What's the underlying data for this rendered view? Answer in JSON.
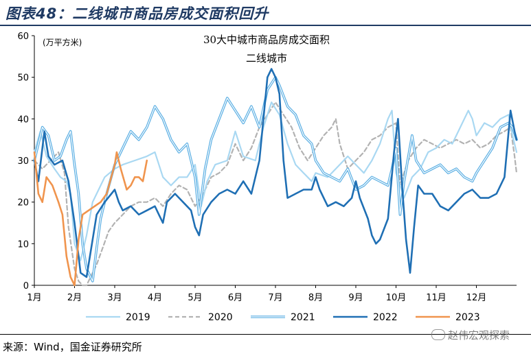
{
  "figure_title": "图表48：二线城市商品房成交面积回升",
  "source_note": "来源：Wind，国金证券研究所",
  "watermark": "赵伟宏观探索",
  "chart_data": {
    "type": "line",
    "title": "30大中城市商品房成交面积",
    "subtitle": "二线城市",
    "unit_label": "(万平方米)",
    "ylim": [
      0,
      60
    ],
    "yticks": [
      0,
      10,
      20,
      30,
      40,
      50,
      60
    ],
    "xlim": [
      1,
      13
    ],
    "xtick_labels": [
      "1月",
      "2月",
      "3月",
      "4月",
      "5月",
      "6月",
      "7月",
      "8月",
      "9月",
      "10月",
      "11月",
      "12月"
    ],
    "legend_position": "bottom",
    "grid": false,
    "series": [
      {
        "name": "2019",
        "color": "#a9d8f2",
        "dash": "solid",
        "double": false,
        "width": 2.2,
        "points": [
          [
            1,
            32
          ],
          [
            1.15,
            37
          ],
          [
            1.3,
            31
          ],
          [
            1.5,
            28
          ],
          [
            1.65,
            26
          ],
          [
            1.8,
            25
          ],
          [
            1.9,
            22
          ],
          [
            2.0,
            10
          ],
          [
            2.15,
            6
          ],
          [
            2.3,
            12
          ],
          [
            2.45,
            20
          ],
          [
            2.6,
            23
          ],
          [
            2.75,
            26
          ],
          [
            3.0,
            28
          ],
          [
            3.2,
            29
          ],
          [
            3.5,
            30
          ],
          [
            3.8,
            31
          ],
          [
            4.0,
            32
          ],
          [
            4.2,
            26
          ],
          [
            4.4,
            24
          ],
          [
            4.6,
            26
          ],
          [
            4.8,
            26
          ],
          [
            5.0,
            29
          ],
          [
            5.15,
            19
          ],
          [
            5.3,
            25
          ],
          [
            5.5,
            29
          ],
          [
            5.8,
            30
          ],
          [
            6.0,
            37
          ],
          [
            6.2,
            31
          ],
          [
            6.5,
            30
          ],
          [
            6.7,
            38
          ],
          [
            6.9,
            44
          ],
          [
            7.1,
            41
          ],
          [
            7.3,
            34
          ],
          [
            7.5,
            29
          ],
          [
            7.7,
            27
          ],
          [
            7.9,
            25
          ],
          [
            8.0,
            27
          ],
          [
            8.3,
            26
          ],
          [
            8.5,
            28
          ],
          [
            8.8,
            31
          ],
          [
            9.0,
            29
          ],
          [
            9.2,
            27
          ],
          [
            9.4,
            30
          ],
          [
            9.6,
            34
          ],
          [
            9.8,
            40
          ],
          [
            9.9,
            42
          ],
          [
            10.0,
            27
          ],
          [
            10.2,
            21
          ],
          [
            10.4,
            26
          ],
          [
            10.6,
            28
          ],
          [
            10.8,
            32
          ],
          [
            11.0,
            33
          ],
          [
            11.2,
            35
          ],
          [
            11.4,
            34
          ],
          [
            11.6,
            38
          ],
          [
            11.8,
            42
          ],
          [
            11.9,
            40
          ],
          [
            12.0,
            36
          ],
          [
            12.2,
            39
          ],
          [
            12.4,
            38
          ],
          [
            12.6,
            40
          ],
          [
            12.8,
            41
          ],
          [
            12.9,
            36
          ],
          [
            13.0,
            32
          ]
        ]
      },
      {
        "name": "2020",
        "color": "#b2b2b2",
        "dash": "6,4",
        "double": false,
        "width": 2.2,
        "points": [
          [
            1,
            30
          ],
          [
            1.2,
            28
          ],
          [
            1.4,
            30
          ],
          [
            1.6,
            32
          ],
          [
            1.75,
            27
          ],
          [
            1.85,
            14
          ],
          [
            2.0,
            4
          ],
          [
            2.1,
            1
          ],
          [
            2.2,
            0
          ],
          [
            2.3,
            0
          ],
          [
            2.4,
            2
          ],
          [
            2.55,
            5
          ],
          [
            2.7,
            9
          ],
          [
            2.85,
            13
          ],
          [
            3.0,
            15
          ],
          [
            3.2,
            17
          ],
          [
            3.4,
            19
          ],
          [
            3.6,
            20
          ],
          [
            3.8,
            20
          ],
          [
            4.0,
            21
          ],
          [
            4.2,
            19
          ],
          [
            4.4,
            22
          ],
          [
            4.6,
            24
          ],
          [
            4.8,
            23
          ],
          [
            5.0,
            19
          ],
          [
            5.2,
            22
          ],
          [
            5.4,
            26
          ],
          [
            5.6,
            27
          ],
          [
            5.8,
            29
          ],
          [
            6.0,
            34
          ],
          [
            6.2,
            30
          ],
          [
            6.4,
            33
          ],
          [
            6.6,
            38
          ],
          [
            6.8,
            41
          ],
          [
            7.0,
            44
          ],
          [
            7.2,
            41
          ],
          [
            7.4,
            38
          ],
          [
            7.6,
            33
          ],
          [
            7.8,
            30
          ],
          [
            8.0,
            33
          ],
          [
            8.2,
            36
          ],
          [
            8.4,
            38
          ],
          [
            8.5,
            40
          ],
          [
            8.6,
            34
          ],
          [
            8.8,
            28
          ],
          [
            9.0,
            30
          ],
          [
            9.2,
            32
          ],
          [
            9.4,
            35
          ],
          [
            9.6,
            36
          ],
          [
            9.8,
            38
          ],
          [
            10.0,
            39
          ],
          [
            10.1,
            24
          ],
          [
            10.3,
            30
          ],
          [
            10.5,
            33
          ],
          [
            10.7,
            35
          ],
          [
            10.9,
            34
          ],
          [
            11.1,
            33
          ],
          [
            11.3,
            34
          ],
          [
            11.5,
            35
          ],
          [
            11.7,
            34
          ],
          [
            11.9,
            35
          ],
          [
            12.1,
            33
          ],
          [
            12.3,
            34
          ],
          [
            12.5,
            36
          ],
          [
            12.7,
            37
          ],
          [
            12.85,
            38
          ],
          [
            12.95,
            31
          ],
          [
            13.0,
            27
          ]
        ]
      },
      {
        "name": "2021",
        "color": "#59aee3",
        "dash": "solid",
        "double": true,
        "width": 3.6,
        "points": [
          [
            1,
            30
          ],
          [
            1.1,
            34
          ],
          [
            1.2,
            38
          ],
          [
            1.35,
            36
          ],
          [
            1.5,
            30
          ],
          [
            1.65,
            31
          ],
          [
            1.8,
            35
          ],
          [
            1.9,
            37
          ],
          [
            2.0,
            29
          ],
          [
            2.1,
            22
          ],
          [
            2.2,
            10
          ],
          [
            2.3,
            4
          ],
          [
            2.45,
            1
          ],
          [
            2.55,
            9
          ],
          [
            2.65,
            16
          ],
          [
            2.8,
            22
          ],
          [
            3.0,
            29
          ],
          [
            3.2,
            33
          ],
          [
            3.4,
            37
          ],
          [
            3.6,
            35
          ],
          [
            3.8,
            38
          ],
          [
            4.0,
            43
          ],
          [
            4.2,
            40
          ],
          [
            4.4,
            35
          ],
          [
            4.6,
            32
          ],
          [
            4.8,
            34
          ],
          [
            5.0,
            26
          ],
          [
            5.1,
            17
          ],
          [
            5.25,
            28
          ],
          [
            5.4,
            35
          ],
          [
            5.6,
            40
          ],
          [
            5.8,
            45
          ],
          [
            6.0,
            42
          ],
          [
            6.2,
            39
          ],
          [
            6.4,
            43
          ],
          [
            6.6,
            38
          ],
          [
            6.8,
            47
          ],
          [
            7.0,
            50
          ],
          [
            7.1,
            48
          ],
          [
            7.3,
            43
          ],
          [
            7.5,
            41
          ],
          [
            7.7,
            36
          ],
          [
            7.9,
            34
          ],
          [
            8.0,
            30
          ],
          [
            8.2,
            27
          ],
          [
            8.4,
            26
          ],
          [
            8.6,
            25
          ],
          [
            8.8,
            28
          ],
          [
            9.0,
            23
          ],
          [
            9.2,
            24
          ],
          [
            9.4,
            26
          ],
          [
            9.6,
            25
          ],
          [
            9.8,
            24
          ],
          [
            9.9,
            28
          ],
          [
            10.0,
            33
          ],
          [
            10.1,
            17
          ],
          [
            10.2,
            25
          ],
          [
            10.4,
            36
          ],
          [
            10.5,
            30
          ],
          [
            10.7,
            27
          ],
          [
            10.9,
            28
          ],
          [
            11.1,
            29
          ],
          [
            11.3,
            27
          ],
          [
            11.5,
            28
          ],
          [
            11.7,
            26
          ],
          [
            11.9,
            25
          ],
          [
            12.0,
            27
          ],
          [
            12.2,
            30
          ],
          [
            12.4,
            33
          ],
          [
            12.6,
            38
          ],
          [
            12.8,
            39
          ],
          [
            12.9,
            38
          ],
          [
            13.0,
            35
          ]
        ]
      },
      {
        "name": "2022",
        "color": "#1f6fb4",
        "dash": "solid",
        "double": false,
        "width": 2.6,
        "points": [
          [
            1,
            30
          ],
          [
            1.1,
            25
          ],
          [
            1.25,
            37
          ],
          [
            1.35,
            31
          ],
          [
            1.5,
            29
          ],
          [
            1.7,
            30
          ],
          [
            1.85,
            25
          ],
          [
            2.0,
            15
          ],
          [
            2.15,
            3
          ],
          [
            2.3,
            2
          ],
          [
            2.4,
            8
          ],
          [
            2.55,
            17
          ],
          [
            2.75,
            20
          ],
          [
            3.0,
            23
          ],
          [
            3.1,
            20
          ],
          [
            3.2,
            18
          ],
          [
            3.4,
            19
          ],
          [
            3.6,
            17
          ],
          [
            3.8,
            18
          ],
          [
            4.0,
            19
          ],
          [
            4.1,
            17
          ],
          [
            4.2,
            15
          ],
          [
            4.3,
            20
          ],
          [
            4.5,
            22
          ],
          [
            4.7,
            20
          ],
          [
            4.9,
            18
          ],
          [
            5.0,
            14
          ],
          [
            5.1,
            12
          ],
          [
            5.2,
            17
          ],
          [
            5.4,
            20
          ],
          [
            5.6,
            22
          ],
          [
            5.8,
            23
          ],
          [
            6.0,
            22
          ],
          [
            6.2,
            25
          ],
          [
            6.4,
            22
          ],
          [
            6.6,
            30
          ],
          [
            6.7,
            40
          ],
          [
            6.8,
            50
          ],
          [
            6.9,
            52
          ],
          [
            7.0,
            50
          ],
          [
            7.1,
            46
          ],
          [
            7.2,
            30
          ],
          [
            7.3,
            21
          ],
          [
            7.5,
            22
          ],
          [
            7.7,
            23
          ],
          [
            7.9,
            23
          ],
          [
            8.0,
            26
          ],
          [
            8.1,
            23
          ],
          [
            8.3,
            19
          ],
          [
            8.5,
            20
          ],
          [
            8.7,
            19
          ],
          [
            8.9,
            21
          ],
          [
            9.0,
            25
          ],
          [
            9.1,
            21
          ],
          [
            9.3,
            16
          ],
          [
            9.4,
            12
          ],
          [
            9.5,
            10
          ],
          [
            9.6,
            11
          ],
          [
            9.8,
            16
          ],
          [
            9.95,
            32
          ],
          [
            10.05,
            40
          ],
          [
            10.15,
            24
          ],
          [
            10.25,
            11
          ],
          [
            10.35,
            3
          ],
          [
            10.45,
            14
          ],
          [
            10.55,
            24
          ],
          [
            10.7,
            22
          ],
          [
            10.9,
            22
          ],
          [
            11.1,
            19
          ],
          [
            11.3,
            18
          ],
          [
            11.5,
            20
          ],
          [
            11.7,
            22
          ],
          [
            11.9,
            23
          ],
          [
            12.1,
            21
          ],
          [
            12.3,
            21
          ],
          [
            12.5,
            22
          ],
          [
            12.7,
            26
          ],
          [
            12.85,
            42
          ],
          [
            12.95,
            37
          ],
          [
            13.0,
            35
          ]
        ]
      },
      {
        "name": "2023",
        "color": "#f0944d",
        "dash": "solid",
        "double": false,
        "width": 2.6,
        "points": [
          [
            1,
            32
          ],
          [
            1.1,
            22
          ],
          [
            1.2,
            20
          ],
          [
            1.3,
            26
          ],
          [
            1.45,
            24
          ],
          [
            1.6,
            20
          ],
          [
            1.7,
            17
          ],
          [
            1.8,
            7
          ],
          [
            1.9,
            2
          ],
          [
            2.0,
            0
          ],
          [
            2.1,
            11
          ],
          [
            2.2,
            17
          ],
          [
            2.35,
            18
          ],
          [
            2.5,
            19
          ],
          [
            2.65,
            20
          ],
          [
            2.8,
            22
          ],
          [
            3.0,
            29
          ],
          [
            3.05,
            32
          ],
          [
            3.15,
            28
          ],
          [
            3.3,
            23
          ],
          [
            3.4,
            24
          ],
          [
            3.5,
            26
          ],
          [
            3.6,
            26
          ],
          [
            3.7,
            25
          ],
          [
            3.8,
            30
          ]
        ]
      }
    ]
  }
}
